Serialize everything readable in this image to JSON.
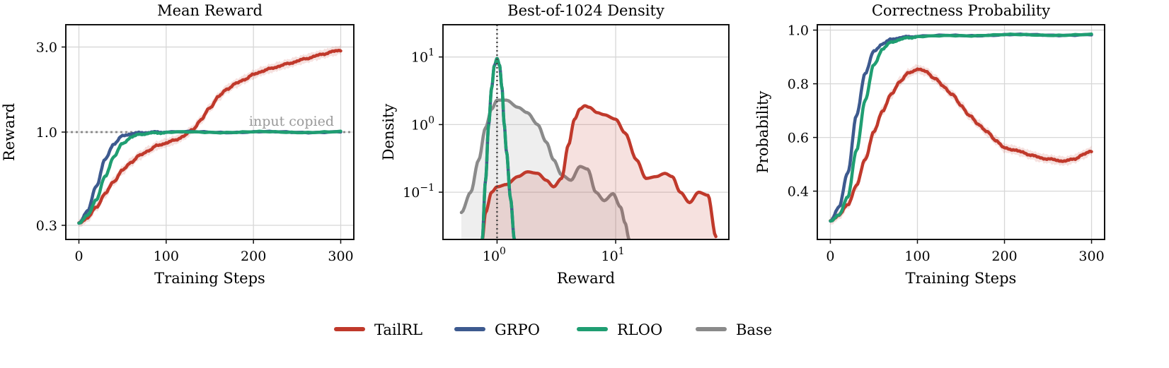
{
  "colors": {
    "TailRL": "#c0392b",
    "GRPO": "#3d5a8f",
    "RLOO": "#1f9e72",
    "Base": "#8a8a8a",
    "grid": "#d7d7d7"
  },
  "legend": {
    "placement": "bottom-center",
    "items": [
      {
        "label": "TailRL",
        "color_key": "TailRL"
      },
      {
        "label": "GRPO",
        "color_key": "GRPO"
      },
      {
        "label": "RLOO",
        "color_key": "RLOO"
      },
      {
        "label": "Base",
        "color_key": "Base"
      }
    ]
  },
  "chart_data": [
    {
      "type": "line",
      "title": "Mean Reward",
      "xlabel": "Training Steps",
      "ylabel": "Reward",
      "xlim": [
        -15,
        315
      ],
      "ylim": [
        0.25,
        4.0
      ],
      "yscale": "log",
      "xticks": [
        0,
        100,
        200,
        300
      ],
      "xtick_labels": [
        "0",
        "100",
        "200",
        "300"
      ],
      "yticks": [
        0.3,
        1.0,
        3.0
      ],
      "ytick_labels": [
        "0.3",
        "1.0",
        "3.0"
      ],
      "grid": true,
      "reference_line": {
        "y": 1.0,
        "style": "dotted",
        "label": "input copied"
      },
      "series": [
        {
          "name": "TailRL",
          "color_key": "TailRL",
          "band": true,
          "x": [
            0,
            10,
            20,
            30,
            40,
            50,
            60,
            70,
            80,
            90,
            100,
            110,
            120,
            130,
            140,
            150,
            160,
            170,
            180,
            190,
            200,
            210,
            220,
            230,
            240,
            250,
            260,
            270,
            280,
            290,
            300
          ],
          "y": [
            0.31,
            0.33,
            0.38,
            0.45,
            0.53,
            0.61,
            0.68,
            0.74,
            0.79,
            0.84,
            0.87,
            0.9,
            0.95,
            1.03,
            1.17,
            1.37,
            1.58,
            1.75,
            1.87,
            1.98,
            2.1,
            2.2,
            2.27,
            2.35,
            2.42,
            2.5,
            2.58,
            2.66,
            2.74,
            2.82,
            2.88
          ]
        },
        {
          "name": "GRPO",
          "color_key": "GRPO",
          "band": false,
          "x": [
            0,
            10,
            20,
            30,
            40,
            50,
            60,
            70,
            80,
            90,
            100,
            150,
            200,
            250,
            300
          ],
          "y": [
            0.31,
            0.36,
            0.5,
            0.7,
            0.86,
            0.95,
            0.98,
            0.99,
            0.995,
            1.0,
            1.0,
            1.0,
            1.0,
            1.0,
            1.0
          ]
        },
        {
          "name": "RLOO",
          "color_key": "RLOO",
          "band": false,
          "x": [
            0,
            10,
            20,
            30,
            40,
            50,
            60,
            70,
            80,
            90,
            100,
            150,
            200,
            250,
            300
          ],
          "y": [
            0.31,
            0.34,
            0.42,
            0.56,
            0.73,
            0.86,
            0.94,
            0.97,
            0.985,
            0.99,
            0.995,
            1.0,
            1.0,
            1.0,
            1.0
          ]
        }
      ]
    },
    {
      "type": "area",
      "title": "Best-of-1024 Density",
      "xlabel": "Reward",
      "ylabel": "Density",
      "xscale": "log",
      "yscale": "log",
      "xlim": [
        0.35,
        90
      ],
      "ylim": [
        0.02,
        30
      ],
      "xticks": [
        1,
        10
      ],
      "xtick_labels": [
        "10^0",
        "10^1"
      ],
      "yticks": [
        0.1,
        1,
        10
      ],
      "ytick_labels": [
        "10^-1",
        "10^0",
        "10^1"
      ],
      "grid": true,
      "reference_line": {
        "x": 1.0,
        "style": "dotted"
      },
      "series": [
        {
          "name": "Base",
          "color_key": "Base",
          "fill": true,
          "x": [
            0.5,
            0.6,
            0.7,
            0.8,
            0.9,
            1.0,
            1.2,
            1.5,
            1.8,
            2.2,
            2.6,
            3.0,
            3.5,
            4.2,
            5.0,
            5.8,
            6.8,
            8.0,
            9.5,
            11.0,
            12.0,
            13.0
          ],
          "y": [
            0.05,
            0.1,
            0.3,
            0.9,
            1.7,
            2.3,
            2.3,
            1.8,
            1.5,
            1.0,
            0.55,
            0.3,
            0.18,
            0.15,
            0.24,
            0.22,
            0.1,
            0.075,
            0.095,
            0.06,
            0.035,
            0.02
          ]
        },
        {
          "name": "TailRL",
          "color_key": "TailRL",
          "fill": true,
          "x": [
            0.75,
            0.8,
            0.9,
            1.0,
            1.2,
            1.5,
            1.8,
            2.2,
            2.6,
            3.0,
            3.5,
            4.0,
            4.5,
            5.0,
            5.5,
            6.0,
            7.0,
            8.0,
            10.0,
            12.0,
            15.0,
            18.0,
            22.0,
            26.0,
            30.0,
            35.0,
            42.0,
            50.0,
            60.0,
            70.0
          ],
          "y": [
            0.02,
            0.05,
            0.1,
            0.12,
            0.13,
            0.17,
            0.2,
            0.19,
            0.15,
            0.12,
            0.16,
            0.5,
            1.2,
            1.7,
            1.9,
            1.8,
            1.5,
            1.4,
            1.2,
            0.75,
            0.3,
            0.16,
            0.17,
            0.19,
            0.17,
            0.1,
            0.07,
            0.1,
            0.09,
            0.022
          ]
        },
        {
          "name": "GRPO",
          "color_key": "GRPO",
          "fill": false,
          "dashed_overlay": true,
          "x": [
            0.75,
            0.8,
            0.85,
            0.9,
            0.95,
            1.0,
            1.05,
            1.1,
            1.15,
            1.2,
            1.3,
            1.4
          ],
          "y": [
            0.02,
            0.15,
            1.0,
            3.5,
            7.5,
            9.5,
            7.5,
            3.5,
            1.0,
            0.4,
            0.08,
            0.02
          ]
        },
        {
          "name": "RLOO",
          "color_key": "RLOO",
          "fill": false,
          "dashed_overlay": true,
          "x": [
            0.75,
            0.8,
            0.85,
            0.9,
            0.95,
            1.0,
            1.05,
            1.1,
            1.15,
            1.2,
            1.3,
            1.4
          ],
          "y": [
            0.02,
            0.15,
            1.0,
            3.5,
            7.5,
            9.5,
            7.5,
            3.5,
            1.0,
            0.4,
            0.08,
            0.02
          ]
        }
      ]
    },
    {
      "type": "line",
      "title": "Correctness Probability",
      "xlabel": "Training Steps",
      "ylabel": "Probability",
      "xlim": [
        -15,
        315
      ],
      "ylim": [
        0.22,
        1.02
      ],
      "xticks": [
        0,
        100,
        200,
        300
      ],
      "xtick_labels": [
        "0",
        "100",
        "200",
        "300"
      ],
      "yticks": [
        0.4,
        0.6,
        0.8,
        1.0
      ],
      "ytick_labels": [
        "0.4",
        "0.6",
        "0.8",
        "1.0"
      ],
      "grid": true,
      "series": [
        {
          "name": "TailRL",
          "color_key": "TailRL",
          "band": true,
          "x": [
            0,
            10,
            20,
            30,
            40,
            50,
            60,
            70,
            80,
            90,
            100,
            110,
            120,
            130,
            140,
            150,
            160,
            170,
            180,
            190,
            200,
            210,
            220,
            230,
            240,
            250,
            260,
            270,
            280,
            290,
            300
          ],
          "y": [
            0.29,
            0.31,
            0.35,
            0.42,
            0.52,
            0.62,
            0.7,
            0.76,
            0.81,
            0.84,
            0.855,
            0.845,
            0.82,
            0.79,
            0.76,
            0.72,
            0.68,
            0.65,
            0.62,
            0.59,
            0.56,
            0.555,
            0.545,
            0.535,
            0.525,
            0.52,
            0.515,
            0.512,
            0.52,
            0.535,
            0.55
          ]
        },
        {
          "name": "GRPO",
          "color_key": "GRPO",
          "band": false,
          "x": [
            0,
            10,
            20,
            30,
            40,
            50,
            60,
            70,
            80,
            90,
            100,
            150,
            200,
            250,
            300
          ],
          "y": [
            0.29,
            0.34,
            0.47,
            0.68,
            0.84,
            0.92,
            0.95,
            0.965,
            0.972,
            0.975,
            0.977,
            0.98,
            0.982,
            0.982,
            0.982
          ]
        },
        {
          "name": "RLOO",
          "color_key": "RLOO",
          "band": false,
          "x": [
            0,
            10,
            20,
            30,
            40,
            50,
            60,
            70,
            80,
            90,
            100,
            150,
            200,
            250,
            300
          ],
          "y": [
            0.29,
            0.31,
            0.38,
            0.55,
            0.74,
            0.87,
            0.93,
            0.955,
            0.965,
            0.972,
            0.975,
            0.98,
            0.982,
            0.982,
            0.982
          ]
        }
      ]
    }
  ]
}
